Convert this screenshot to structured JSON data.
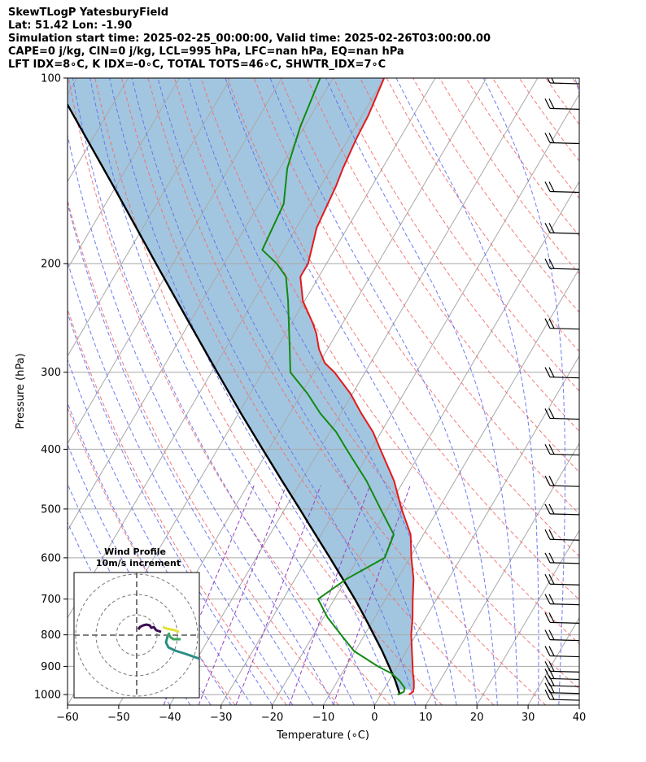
{
  "title": {
    "line1": "SkewTLogP YatesburyField",
    "line2": "Lat: 51.42   Lon: -1.90",
    "line3": "Simulation start time: 2025-02-25_00:00:00, Valid time: 2025-02-26T03:00:00.00",
    "line4": "CAPE=0 j/kg, CIN=0 j/kg, LCL=995 hPa, LFC=nan hPa, EQ=nan hPa",
    "line5": "LFT IDX=8∘C, K IDX=-0∘C, TOTAL TOTS=46∘C, SHWTR_IDX=7∘C"
  },
  "inset": {
    "title1": "Wind Profile",
    "title2": "10m/s increment"
  },
  "chart_data": {
    "type": "line",
    "xlabel": "Temperature (∘C)",
    "ylabel": "Pressure (hPa)",
    "xlim": [
      -60,
      40
    ],
    "ylim": [
      1040,
      100
    ],
    "y_scale": "log",
    "x_ticks": [
      -60,
      -50,
      -40,
      -30,
      -20,
      -10,
      0,
      10,
      20,
      30,
      40
    ],
    "y_ticks": [
      100,
      200,
      300,
      400,
      500,
      600,
      700,
      800,
      900,
      1000
    ],
    "grid": true,
    "colors": {
      "temperature": "#e31a1c",
      "dewpoint": "#118a11",
      "parcel": "#000000",
      "fill": "#a3c6e0",
      "dry_adiabat": "#f26b6b",
      "moist_adiabat": "#5e6ef0",
      "mixing_ratio": "#9640c0",
      "isotherm": "#a8a8a8"
    },
    "temperature": {
      "p": [
        1000,
        990,
        975,
        950,
        925,
        900,
        850,
        800,
        750,
        700,
        650,
        600,
        550,
        500,
        450,
        400,
        375,
        350,
        325,
        300,
        290,
        275,
        260,
        250,
        230,
        210,
        200,
        190,
        175,
        150,
        140,
        125,
        115,
        100
      ],
      "t": [
        5.5,
        6.0,
        5.7,
        4.9,
        3.9,
        3.0,
        1.1,
        -0.9,
        -2.6,
        -4.7,
        -6.8,
        -9.7,
        -12.5,
        -17.2,
        -21.9,
        -28.2,
        -31.6,
        -36.0,
        -40.4,
        -46.0,
        -48.9,
        -51.7,
        -53.9,
        -55.8,
        -60.3,
        -63.6,
        -63.6,
        -64.5,
        -66.0,
        -67.0,
        -67.7,
        -68.5,
        -68.8,
        -70.0
      ]
    },
    "dewpoint": {
      "p": [
        1000,
        990,
        975,
        950,
        925,
        900,
        850,
        800,
        750,
        700,
        650,
        600,
        550,
        500,
        450,
        400,
        375,
        350,
        325,
        300,
        275,
        250,
        230,
        210,
        200,
        190,
        160,
        140,
        120,
        100
      ],
      "td": [
        3.3,
        4.2,
        3.9,
        2.1,
        -0.2,
        -3.8,
        -10.2,
        -14.6,
        -19.2,
        -23.2,
        -20.0,
        -14.9,
        -15.8,
        -21.3,
        -27.3,
        -34.8,
        -38.8,
        -44.0,
        -48.8,
        -54.6,
        -57.4,
        -60.5,
        -63.2,
        -66.4,
        -69.7,
        -74.1,
        -75.2,
        -78.6,
        -80.8,
        -82.5
      ]
    },
    "parcel": {
      "p": [
        1000,
        995,
        950,
        900,
        850,
        800,
        750,
        700,
        650,
        600,
        550,
        500,
        450,
        400,
        350,
        300,
        250,
        200,
        150,
        100
      ],
      "t": [
        3.5,
        3.5,
        1.3,
        -1.6,
        -4.7,
        -8.2,
        -11.9,
        -16.0,
        -20.6,
        -25.6,
        -31.1,
        -37.1,
        -43.8,
        -51.2,
        -59.5,
        -68.9,
        -79.9,
        -93.3,
        -110.4,
        -134.8
      ]
    },
    "wind_barbs": {
      "p": [
        1000,
        975,
        950,
        925,
        900,
        850,
        800,
        750,
        700,
        650,
        600,
        550,
        500,
        450,
        400,
        350,
        300,
        250,
        200,
        175,
        150,
        125,
        110,
        100
      ]
    }
  }
}
